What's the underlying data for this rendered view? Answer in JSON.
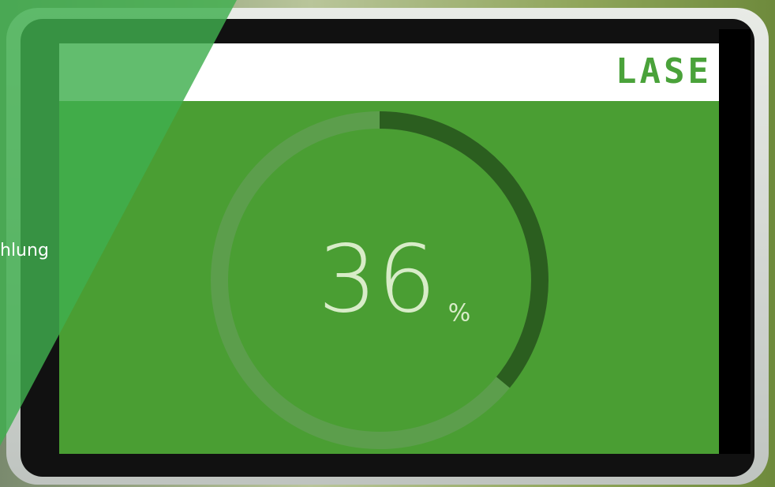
{
  "logo": "LASE",
  "side_text": "hlung",
  "progress": {
    "value": 36,
    "unit": "%"
  }
}
